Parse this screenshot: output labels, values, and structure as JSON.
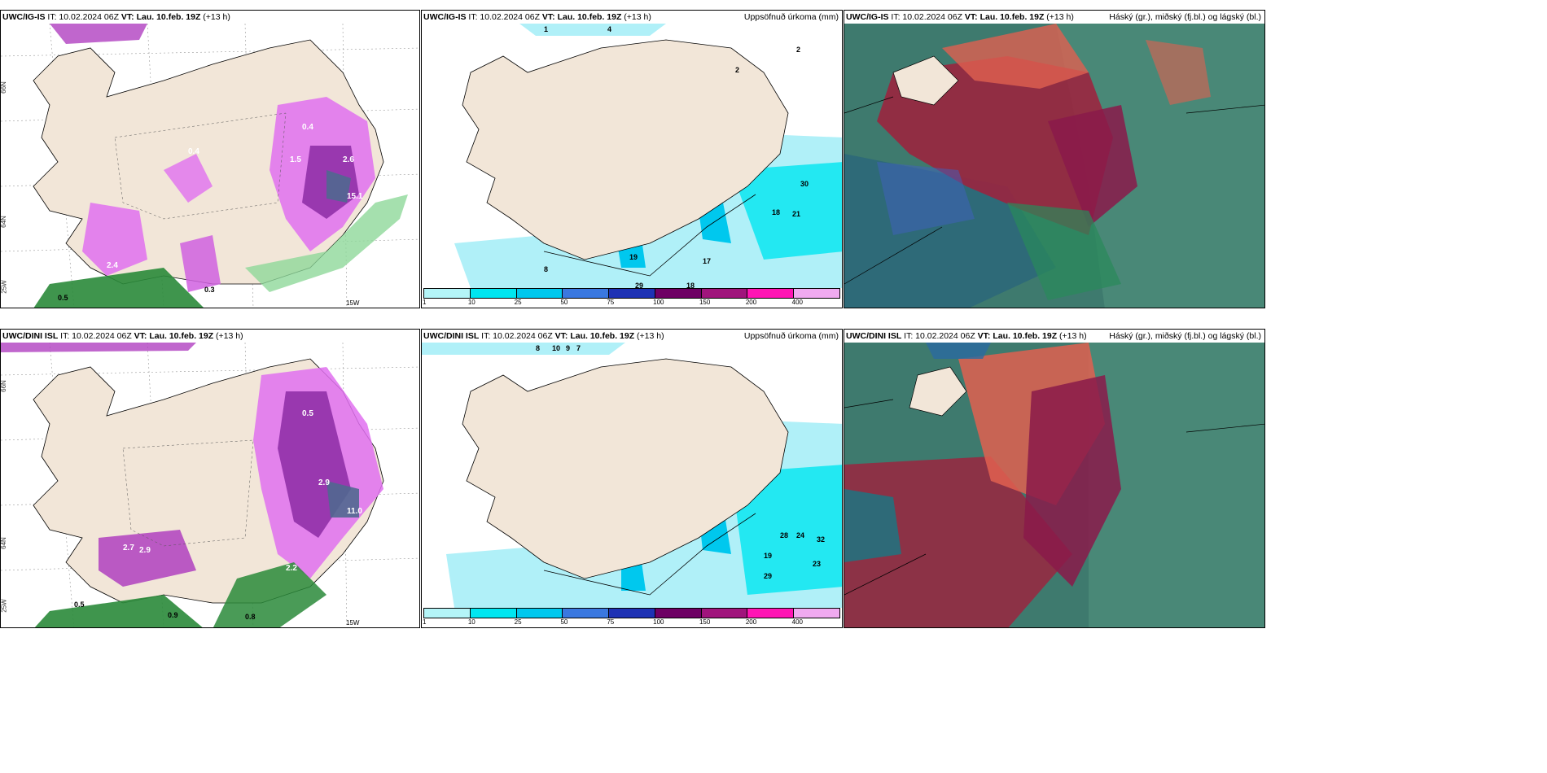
{
  "panels": {
    "p1": {
      "model": "UWC/IG-IS",
      "it": "IT: 10.02.2024 06Z",
      "vt_label": "VT:",
      "vt": "Lau. 10.feb. 19Z",
      "lead": "(+13 h)",
      "right": ""
    },
    "p2": {
      "model": "UWC/IG-IS",
      "it": "IT: 10.02.2024 06Z",
      "vt_label": "VT:",
      "vt": "Lau. 10.feb. 19Z",
      "lead": "(+13 h)",
      "right": "Uppsöfnuð úrkoma (mm)"
    },
    "p3": {
      "model": "UWC/IG-IS",
      "it": "IT: 10.02.2024 06Z",
      "vt_label": "VT:",
      "vt": "Lau. 10.feb. 19Z",
      "lead": "(+13 h)",
      "right": "Háský (gr.), miðský (fj.bl.) og lágský (bl.)"
    },
    "p4": {
      "model": "UWC/DINI ISL",
      "it": "IT: 10.02.2024 06Z",
      "vt_label": "VT:",
      "vt": "Lau. 10.feb. 19Z",
      "lead": "(+13 h)",
      "right": ""
    },
    "p5": {
      "model": "UWC/DINI ISL",
      "it": "IT: 10.02.2024 06Z",
      "vt_label": "VT:",
      "vt": "Lau. 10.feb. 19Z",
      "lead": "(+13 h)",
      "right": "Uppsöfnuð úrkoma (mm)"
    },
    "p6": {
      "model": "UWC/DINI ISL",
      "it": "IT: 10.02.2024 06Z",
      "vt_label": "VT:",
      "vt": "Lau. 10.feb. 19Z",
      "lead": "(+13 h)",
      "right": "Háský (gr.), miðský (fj.bl.) og lágský (bl.)"
    }
  },
  "grid_labels": {
    "lat66": "66N",
    "lat64": "64N",
    "lon25": "25W",
    "lon15": "15W"
  },
  "colorbar": {
    "ticks": [
      "1",
      "10",
      "25",
      "50",
      "75",
      "100",
      "150",
      "200",
      "400"
    ],
    "colors": [
      "#b4f5f8",
      "#00e6f0",
      "#00c8ee",
      "#3a78e0",
      "#1e32b4",
      "#6e0064",
      "#a0147c",
      "#ff14b4",
      "#f0aaf0"
    ]
  },
  "colors": {
    "land": "#f2e6d8",
    "precip_light": "#b0f0f8",
    "snow_purple": "#b040c0",
    "snow_magenta": "#e070f0",
    "green": "#2a8a3a",
    "cloud_high": "#a0203c",
    "cloud_mid": "#2a7a6a",
    "cloud_low": "#4060c0"
  }
}
